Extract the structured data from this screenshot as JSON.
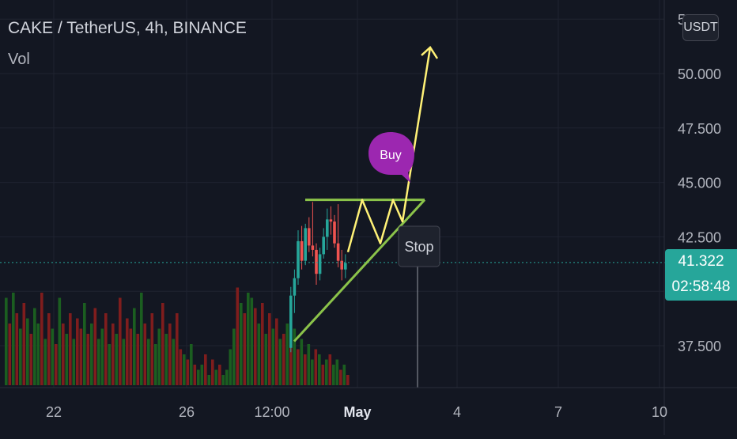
{
  "header": {
    "symbol": "CAKE / TetherUS, 4h, BINANCE",
    "vol_label": "Vol",
    "currency": "USDT"
  },
  "price_axis": {
    "ticks": [
      "50.000",
      "47.500",
      "45.000",
      "42.500",
      "37.500"
    ],
    "top_clipped": "5"
  },
  "time_axis": {
    "ticks": [
      "22",
      "26",
      "12:00",
      "May",
      "4",
      "7",
      "10"
    ]
  },
  "last_price": {
    "value": "41.322",
    "countdown": "02:58:48"
  },
  "annotations": {
    "buy": "Buy",
    "stop": "Stop"
  },
  "colors": {
    "background": "#131722",
    "up": "#26a69a",
    "down": "#ef5350",
    "vol_up": "#1b5e20",
    "vol_down": "#7f1d1d",
    "triangle": "#8bc34a",
    "projection": "#fff176",
    "buy_bubble": "#9c27b0"
  },
  "chart_data": {
    "type": "candlestick",
    "symbol": "CAKE/USDT",
    "timeframe": "4h",
    "exchange": "BINANCE",
    "y_axis_ticks": [
      37.5,
      42.5,
      45.0,
      47.5,
      50.0
    ],
    "last_price": 41.322,
    "pattern_resistance": 44.2,
    "projection_target": 51.2,
    "candles": [
      {
        "o": 37.4,
        "h": 40.2,
        "l": 37.2,
        "c": 39.8
      },
      {
        "o": 39.8,
        "h": 41.0,
        "l": 39.0,
        "c": 40.6
      },
      {
        "o": 40.6,
        "h": 42.8,
        "l": 40.3,
        "c": 42.3
      },
      {
        "o": 42.3,
        "h": 43.0,
        "l": 41.0,
        "c": 41.4
      },
      {
        "o": 41.4,
        "h": 43.1,
        "l": 41.2,
        "c": 42.9
      },
      {
        "o": 42.9,
        "h": 43.4,
        "l": 41.8,
        "c": 42.1
      },
      {
        "o": 42.1,
        "h": 44.1,
        "l": 41.6,
        "c": 41.9
      },
      {
        "o": 41.9,
        "h": 42.2,
        "l": 40.3,
        "c": 40.8
      },
      {
        "o": 40.8,
        "h": 42.0,
        "l": 40.5,
        "c": 41.7
      },
      {
        "o": 41.7,
        "h": 42.9,
        "l": 41.5,
        "c": 42.5
      },
      {
        "o": 42.5,
        "h": 43.8,
        "l": 41.9,
        "c": 43.3
      },
      {
        "o": 43.3,
        "h": 43.9,
        "l": 42.6,
        "c": 43.2
      },
      {
        "o": 43.2,
        "h": 43.5,
        "l": 42.0,
        "c": 42.2
      },
      {
        "o": 42.2,
        "h": 44.0,
        "l": 41.1,
        "c": 41.4
      },
      {
        "o": 41.4,
        "h": 41.9,
        "l": 40.5,
        "c": 41.0
      },
      {
        "o": 41.0,
        "h": 41.7,
        "l": 40.6,
        "c": 41.3
      }
    ],
    "volume_up_flags": [
      1,
      0,
      1,
      0,
      1,
      0,
      1,
      0,
      1,
      1,
      0,
      1,
      0,
      1,
      0,
      1,
      0,
      1,
      0,
      1,
      0,
      0,
      1,
      0,
      1,
      0,
      1,
      1,
      0,
      1,
      0,
      1,
      0,
      1,
      0,
      0,
      1,
      0,
      1,
      0,
      1,
      0,
      1,
      1,
      0,
      1,
      0,
      1,
      0,
      0,
      1,
      0,
      1,
      0,
      1,
      1,
      0,
      1,
      0,
      1,
      0,
      1,
      1,
      1,
      1,
      0,
      1,
      0,
      1,
      1,
      0,
      1,
      0,
      1,
      0,
      1,
      0,
      1,
      0,
      1,
      0,
      1,
      0,
      1,
      0,
      1,
      1,
      0,
      1,
      0,
      1,
      0,
      1,
      1,
      0,
      1,
      0,
      1
    ],
    "volume_values": [
      0.85,
      0.6,
      0.9,
      0.7,
      0.55,
      0.8,
      0.65,
      0.5,
      0.75,
      0.6,
      0.9,
      0.45,
      0.7,
      0.55,
      0.4,
      0.85,
      0.6,
      0.5,
      0.7,
      0.45,
      0.65,
      0.55,
      0.8,
      0.5,
      0.6,
      0.75,
      0.45,
      0.55,
      0.7,
      0.4,
      0.6,
      0.5,
      0.85,
      0.45,
      0.65,
      0.55,
      0.75,
      0.5,
      0.9,
      0.6,
      0.45,
      0.7,
      0.4,
      0.55,
      0.8,
      0.5,
      0.6,
      0.45,
      0.7,
      0.35,
      0.3,
      0.25,
      0.4,
      0.2,
      0.15,
      0.2,
      0.3,
      0.1,
      0.25,
      0.15,
      0.2,
      0.1,
      0.15,
      0.35,
      0.55,
      0.95,
      0.8,
      0.7,
      0.9,
      0.85,
      0.75,
      0.6,
      0.8,
      0.5,
      0.7,
      0.55,
      0.65,
      0.45,
      0.5,
      0.6,
      0.4,
      0.55,
      0.35,
      0.45,
      0.3,
      0.4,
      0.25,
      0.35,
      0.3,
      0.2,
      0.25,
      0.3,
      0.2,
      0.25,
      0.15,
      0.2,
      0.1,
      0.15
    ]
  }
}
